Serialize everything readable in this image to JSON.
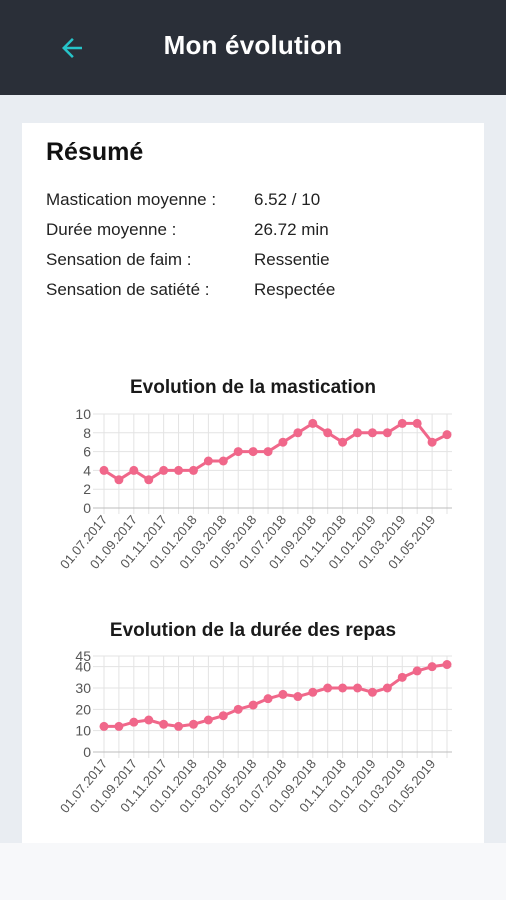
{
  "header": {
    "title": "Mon évolution",
    "back_icon": "arrow-left-icon",
    "accent": "#26c4c9",
    "background": "#2a2f38"
  },
  "summary": {
    "title": "Résumé",
    "rows": [
      {
        "label": "Mastication moyenne :",
        "value": "6.52 / 10"
      },
      {
        "label": "Durée moyenne :",
        "value": "26.72 min"
      },
      {
        "label": "Sensation de faim :",
        "value": "Ressentie"
      },
      {
        "label": "Sensation de satiété :",
        "value": "Respectée"
      }
    ]
  },
  "chart_data": [
    {
      "type": "line",
      "title": "Evolution de la mastication",
      "color": "#f0678a",
      "ylim": [
        0,
        10
      ],
      "yticks": [
        0,
        2,
        4,
        6,
        8,
        10
      ],
      "grid": true,
      "x_tick_labels": [
        "01.07.2017",
        "01.09.2017",
        "01.11.2017",
        "01.01.2018",
        "01.03.2018",
        "01.05.2018",
        "01.07.2018",
        "01.09.2018",
        "01.11.2018",
        "01.01.2019",
        "01.03.2019",
        "01.05.2019"
      ],
      "x": [
        "01.07.2017",
        "01.08.2017",
        "01.09.2017",
        "01.10.2017",
        "01.11.2017",
        "01.12.2017",
        "01.01.2018",
        "01.02.2018",
        "01.03.2018",
        "01.04.2018",
        "01.05.2018",
        "01.06.2018",
        "01.07.2018",
        "01.08.2018",
        "01.09.2018",
        "01.10.2018",
        "01.11.2018",
        "01.12.2018",
        "01.01.2019",
        "01.02.2019",
        "01.03.2019",
        "01.04.2019",
        "01.05.2019",
        "01.06.2019"
      ],
      "values": [
        4,
        3,
        4,
        3,
        4,
        4,
        4,
        5,
        5,
        6,
        6,
        6,
        7,
        8,
        9,
        8,
        7,
        8,
        8,
        8,
        9,
        9,
        7,
        7.8
      ]
    },
    {
      "type": "line",
      "title": "Evolution de la durée des repas",
      "color": "#f0678a",
      "ylim": [
        0,
        45
      ],
      "yticks": [
        0,
        10,
        20,
        30,
        40,
        45
      ],
      "grid": true,
      "x_tick_labels": [
        "01.07.2017",
        "01.09.2017",
        "01.11.2017",
        "01.01.2018",
        "01.03.2018",
        "01.05.2018",
        "01.07.2018",
        "01.09.2018",
        "01.11.2018",
        "01.01.2019",
        "01.03.2019",
        "01.05.2019"
      ],
      "x": [
        "01.07.2017",
        "01.08.2017",
        "01.09.2017",
        "01.10.2017",
        "01.11.2017",
        "01.12.2017",
        "01.01.2018",
        "01.02.2018",
        "01.03.2018",
        "01.04.2018",
        "01.05.2018",
        "01.06.2018",
        "01.07.2018",
        "01.08.2018",
        "01.09.2018",
        "01.10.2018",
        "01.11.2018",
        "01.12.2018",
        "01.01.2019",
        "01.02.2019",
        "01.03.2019",
        "01.04.2019",
        "01.05.2019",
        "01.06.2019"
      ],
      "values": [
        12,
        12,
        14,
        15,
        13,
        12,
        13,
        15,
        17,
        20,
        22,
        25,
        27,
        26,
        28,
        30,
        30,
        30,
        28,
        30,
        35,
        38,
        40,
        41
      ]
    }
  ]
}
